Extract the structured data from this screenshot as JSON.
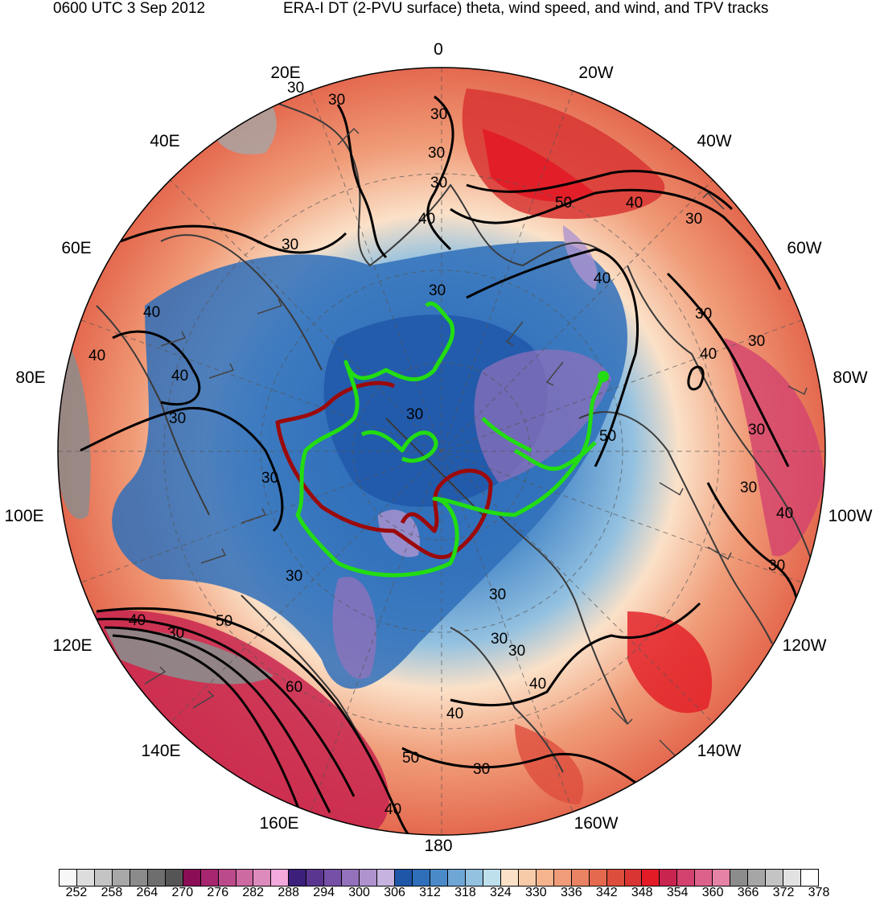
{
  "header": {
    "time_label": "0600 UTC 3 Sep 2012",
    "title": "ERA-I DT (2-PVU surface) theta, wind speed, and wind, and TPV tracks"
  },
  "map": {
    "projection": "north-polar-stereographic",
    "longitude_labels": [
      "0",
      "20W",
      "40W",
      "60W",
      "80W",
      "100W",
      "120W",
      "140W",
      "160W",
      "180",
      "160E",
      "140E",
      "120E",
      "100E",
      "80E",
      "60E",
      "40E",
      "20E"
    ],
    "wind_speed_contour_labels": [
      "30",
      "30",
      "30",
      "30",
      "40",
      "30",
      "30",
      "50",
      "40",
      "30",
      "40",
      "30",
      "40",
      "40",
      "30",
      "40",
      "30",
      "30",
      "30",
      "50",
      "30",
      "40",
      "30",
      "40",
      "30",
      "30",
      "30",
      "40",
      "50",
      "30",
      "30",
      "40",
      "40",
      "50",
      "30",
      "60",
      "30",
      "30",
      "40"
    ],
    "track_colors": {
      "green": "#22dd11",
      "dark_red": "#9b0a0a"
    },
    "contour_color": "#000000",
    "coastline_color": "#3a3a3a"
  },
  "colorbar": {
    "colors": [
      "#f7f7f7",
      "#dddddd",
      "#c4c4c4",
      "#a8a8a8",
      "#8b8b8b",
      "#6e6e6e",
      "#555555",
      "#8a0d56",
      "#a6276f",
      "#bb4a8a",
      "#cd6aa2",
      "#dd8bbd",
      "#f3a9dc",
      "#3b1f7a",
      "#5b3691",
      "#7650a6",
      "#9371bb",
      "#ae93cf",
      "#c6b3e0",
      "#1f56a8",
      "#2f6fba",
      "#4b8ac9",
      "#6ea7d6",
      "#93c1e0",
      "#bedfec",
      "#fbe1c8",
      "#f8cba8",
      "#f5b48d",
      "#f09c78",
      "#ea8363",
      "#e4694f",
      "#dd4e3d",
      "#d83533",
      "#e21b26",
      "#c8244f",
      "#d3426e",
      "#dd628b",
      "#e582a5",
      "#8c8c8c",
      "#a6a6a6",
      "#c4c4c4",
      "#e2e2e2",
      "#ffffff"
    ],
    "tick_labels": [
      "252",
      "258",
      "264",
      "270",
      "276",
      "282",
      "288",
      "294",
      "300",
      "306",
      "312",
      "318",
      "324",
      "330",
      "336",
      "342",
      "348",
      "354",
      "360",
      "366",
      "372",
      "378"
    ]
  }
}
